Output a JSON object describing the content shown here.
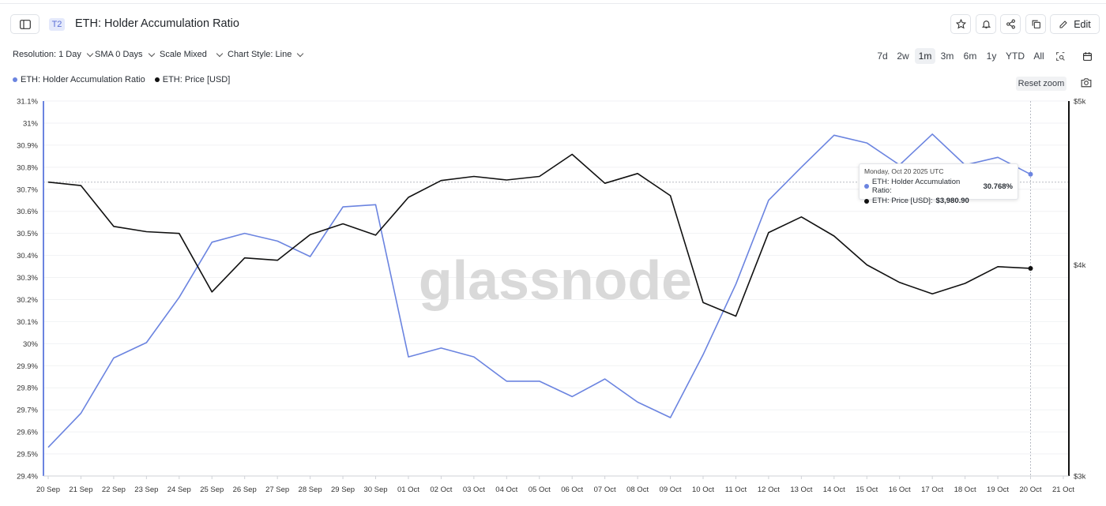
{
  "header": {
    "badge": "T2",
    "title": "ETH: Holder Accumulation Ratio",
    "edit_label": "Edit"
  },
  "controls": {
    "resolution": "Resolution: 1 Day",
    "sma": "SMA 0 Days",
    "scale": "Scale Mixed",
    "chart_style": "Chart Style: Line"
  },
  "ranges": [
    "7d",
    "2w",
    "1m",
    "3m",
    "6m",
    "1y",
    "YTD",
    "All"
  ],
  "selected_range": "1m",
  "reset_zoom": "Reset zoom",
  "watermark": "glassnode",
  "tooltip": {
    "date": "Monday, Oct 20 2025 UTC",
    "row1_label": "ETH: Holder Accumulation Ratio:",
    "row1_value": "30.768%",
    "row2_label": "ETH: Price [USD]:",
    "row2_value": "$3,980.90"
  },
  "colors": {
    "ratio": "#6b84e0",
    "price": "#111111",
    "accent": "#5b6fd6"
  },
  "chart_data": {
    "type": "line",
    "x": [
      "20 Sep",
      "21 Sep",
      "22 Sep",
      "23 Sep",
      "24 Sep",
      "25 Sep",
      "26 Sep",
      "27 Sep",
      "28 Sep",
      "29 Sep",
      "30 Sep",
      "01 Oct",
      "02 Oct",
      "03 Oct",
      "04 Oct",
      "05 Oct",
      "06 Oct",
      "07 Oct",
      "08 Oct",
      "09 Oct",
      "10 Oct",
      "11 Oct",
      "12 Oct",
      "13 Oct",
      "14 Oct",
      "15 Oct",
      "16 Oct",
      "17 Oct",
      "18 Oct",
      "19 Oct",
      "20 Oct",
      "21 Oct"
    ],
    "series": [
      {
        "name": "ETH: Holder Accumulation Ratio",
        "axis": "left",
        "values": [
          29.53,
          29.685,
          29.935,
          30.005,
          30.21,
          30.46,
          30.5,
          30.465,
          30.395,
          30.62,
          30.63,
          29.94,
          29.98,
          29.94,
          29.83,
          29.83,
          29.76,
          29.84,
          29.735,
          29.665,
          29.95,
          30.27,
          30.65,
          30.8,
          30.945,
          30.91,
          30.81,
          30.95,
          30.81,
          30.845,
          30.768,
          null
        ]
      },
      {
        "name": "ETH: Price [USD]",
        "axis": "right",
        "values": [
          4477,
          4456,
          4215,
          4185,
          4175,
          3855,
          4038,
          4025,
          4168,
          4230,
          4165,
          4385,
          4487,
          4512,
          4490,
          4512,
          4650,
          4470,
          4530,
          4395,
          3800,
          3730,
          4180,
          4270,
          4160,
          4000,
          3905,
          3845,
          3900,
          3990,
          3980.9,
          null
        ]
      }
    ],
    "y_left": {
      "ticks": [
        "31.1%",
        "31%",
        "30.9%",
        "30.8%",
        "30.7%",
        "30.6%",
        "30.5%",
        "30.4%",
        "30.3%",
        "30.2%",
        "30.1%",
        "30%",
        "29.9%",
        "29.8%",
        "29.7%",
        "29.6%",
        "29.5%",
        "29.4%"
      ],
      "range": [
        29.4,
        31.1
      ]
    },
    "y_right": {
      "ticks": [
        "$5k",
        "$4k",
        "$3k"
      ],
      "range": [
        3000,
        5000
      ],
      "scale": "log"
    },
    "ylim_left": [
      29.4,
      31.1
    ]
  }
}
